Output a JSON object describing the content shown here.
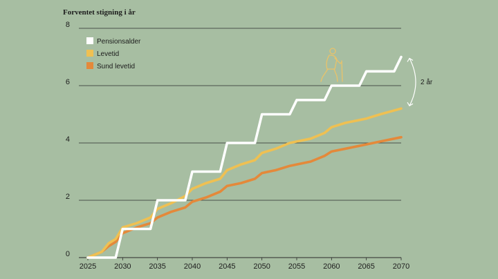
{
  "chart_data": {
    "type": "line",
    "title": "Forventet stigning i år",
    "xlabel": "",
    "ylabel": "",
    "xlim": [
      2025,
      2070
    ],
    "ylim": [
      0,
      8
    ],
    "x_ticks": [
      2025,
      2030,
      2035,
      2040,
      2045,
      2050,
      2055,
      2060,
      2065,
      2070
    ],
    "y_ticks": [
      0,
      2,
      4,
      6,
      8
    ],
    "grid": true,
    "legend_position": "top-left",
    "series": [
      {
        "name": "Pensionsalder",
        "color": "#ffffff",
        "style": "step",
        "points": [
          [
            2025,
            0
          ],
          [
            2029,
            0
          ],
          [
            2030,
            1
          ],
          [
            2034,
            1
          ],
          [
            2035,
            2
          ],
          [
            2039,
            2
          ],
          [
            2040,
            3
          ],
          [
            2044,
            3
          ],
          [
            2045,
            4
          ],
          [
            2049,
            4
          ],
          [
            2050,
            5
          ],
          [
            2054,
            5
          ],
          [
            2055,
            5.5
          ],
          [
            2059,
            5.5
          ],
          [
            2060,
            6
          ],
          [
            2064,
            6
          ],
          [
            2065,
            6.5
          ],
          [
            2069,
            6.5
          ],
          [
            2070,
            7
          ]
        ]
      },
      {
        "name": "Levetid",
        "color": "#efc052",
        "style": "line",
        "points": [
          [
            2025,
            0
          ],
          [
            2027,
            0.2
          ],
          [
            2028,
            0.5
          ],
          [
            2029,
            0.65
          ],
          [
            2030,
            1.05
          ],
          [
            2032,
            1.2
          ],
          [
            2034,
            1.4
          ],
          [
            2035,
            1.7
          ],
          [
            2037,
            1.9
          ],
          [
            2039,
            2.15
          ],
          [
            2040,
            2.4
          ],
          [
            2042,
            2.6
          ],
          [
            2044,
            2.75
          ],
          [
            2045,
            3.05
          ],
          [
            2047,
            3.25
          ],
          [
            2049,
            3.4
          ],
          [
            2050,
            3.65
          ],
          [
            2052,
            3.8
          ],
          [
            2054,
            4.0
          ],
          [
            2055,
            4.05
          ],
          [
            2057,
            4.15
          ],
          [
            2059,
            4.35
          ],
          [
            2060,
            4.55
          ],
          [
            2062,
            4.7
          ],
          [
            2064,
            4.8
          ],
          [
            2065,
            4.85
          ],
          [
            2067,
            5.0
          ],
          [
            2070,
            5.2
          ]
        ]
      },
      {
        "name": "Sund levetid",
        "color": "#e4893a",
        "style": "line",
        "points": [
          [
            2025,
            0
          ],
          [
            2027,
            0.2
          ],
          [
            2028,
            0.4
          ],
          [
            2029,
            0.55
          ],
          [
            2030,
            0.85
          ],
          [
            2032,
            1.05
          ],
          [
            2034,
            1.2
          ],
          [
            2035,
            1.4
          ],
          [
            2037,
            1.6
          ],
          [
            2039,
            1.75
          ],
          [
            2040,
            1.95
          ],
          [
            2042,
            2.1
          ],
          [
            2044,
            2.3
          ],
          [
            2045,
            2.5
          ],
          [
            2047,
            2.6
          ],
          [
            2049,
            2.75
          ],
          [
            2050,
            2.95
          ],
          [
            2052,
            3.05
          ],
          [
            2054,
            3.2
          ],
          [
            2055,
            3.25
          ],
          [
            2057,
            3.35
          ],
          [
            2059,
            3.55
          ],
          [
            2060,
            3.7
          ],
          [
            2062,
            3.8
          ],
          [
            2064,
            3.9
          ],
          [
            2065,
            3.95
          ],
          [
            2067,
            4.05
          ],
          [
            2070,
            4.2
          ]
        ]
      }
    ],
    "annotations": [
      {
        "text": "2 år",
        "from": [
          2070,
          7
        ],
        "to": [
          2070,
          5.2
        ]
      }
    ]
  }
}
